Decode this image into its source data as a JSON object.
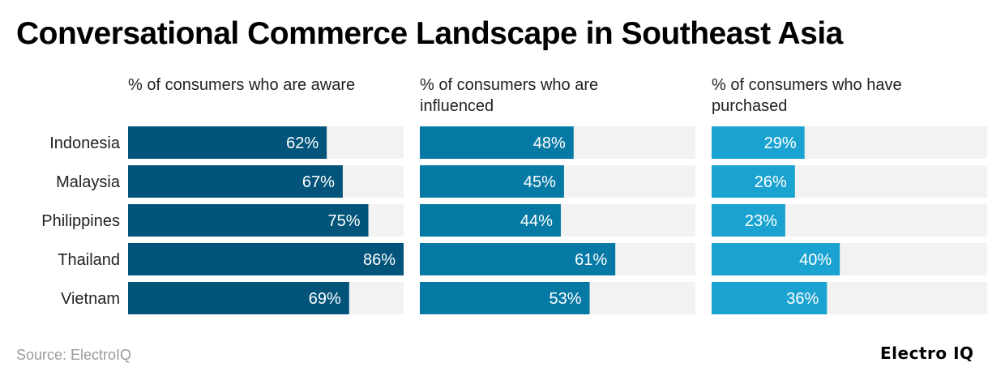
{
  "title": "Conversational Commerce Landscape in Southeast Asia",
  "source": "Source: ElectroIQ",
  "brand": "Electro IQ",
  "chart_data": {
    "type": "bar",
    "orientation": "horizontal",
    "categories": [
      "Indonesia",
      "Malaysia",
      "Philippines",
      "Thailand",
      "Vietnam"
    ],
    "xlim": [
      0,
      86
    ],
    "series": [
      {
        "name": "% of consumers who are aware",
        "color": "#03547a",
        "values": [
          62,
          67,
          75,
          86,
          69
        ]
      },
      {
        "name": "% of consumers who are influenced",
        "color": "#0779a5",
        "values": [
          48,
          45,
          44,
          61,
          53
        ]
      },
      {
        "name": "% of consumers who have purchased",
        "color": "#1aa3d1",
        "values": [
          29,
          26,
          23,
          40,
          36
        ]
      }
    ],
    "value_suffix": "%"
  }
}
